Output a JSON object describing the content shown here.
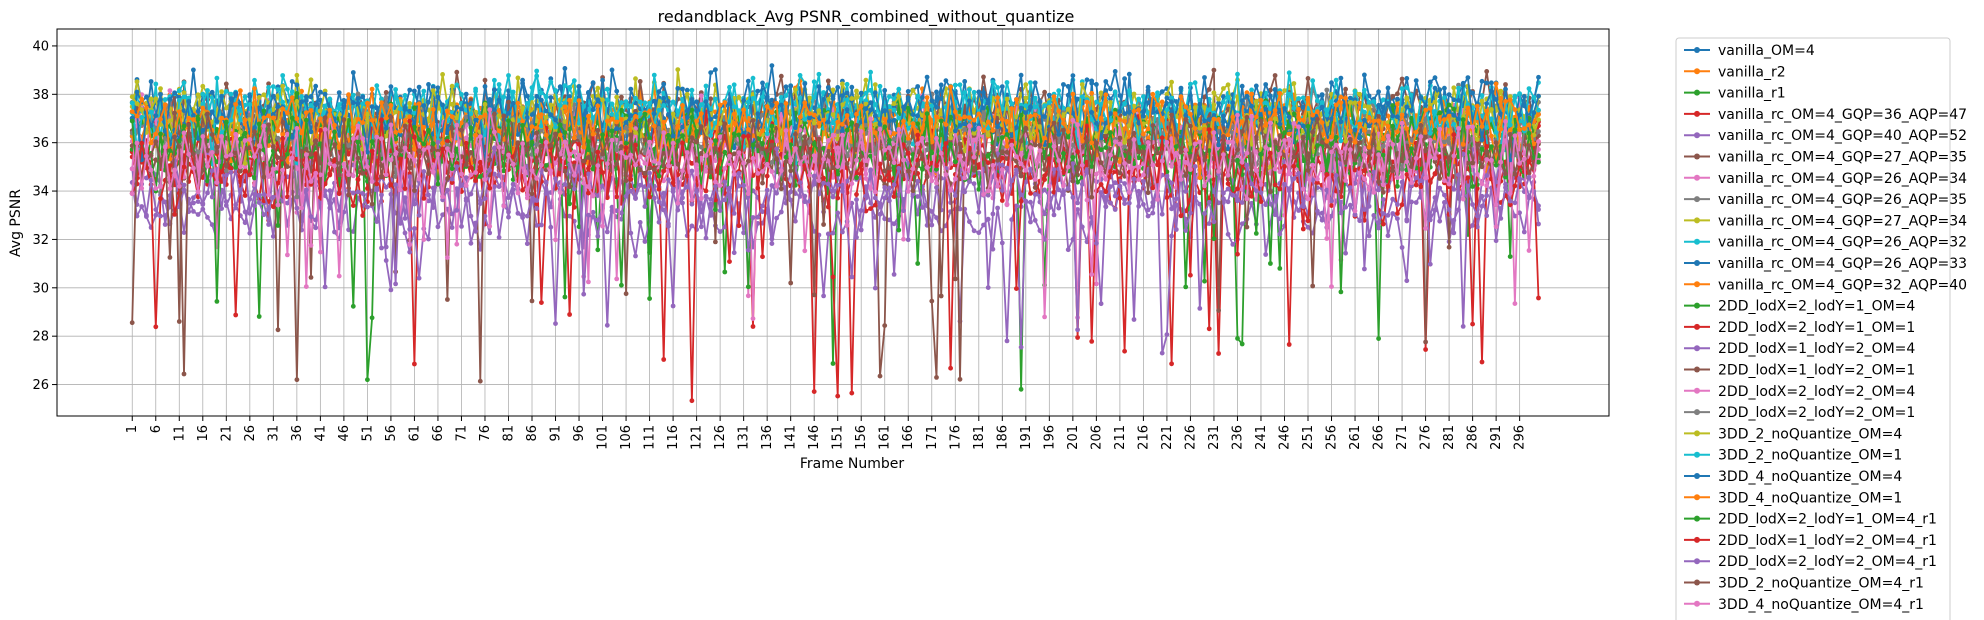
{
  "chart_data": {
    "type": "line",
    "title": "redandblack_Avg PSNR_combined_without_quantize",
    "xlabel": "Frame Number",
    "ylabel": "Avg PSNR",
    "xlim": [
      -15,
      315
    ],
    "ylim": [
      24.7,
      40.7
    ],
    "x_range": [
      1,
      300
    ],
    "x_ticks": [
      1,
      6,
      11,
      16,
      21,
      26,
      31,
      36,
      41,
      46,
      51,
      56,
      61,
      66,
      71,
      76,
      81,
      86,
      91,
      96,
      101,
      106,
      111,
      116,
      121,
      126,
      131,
      136,
      141,
      146,
      151,
      156,
      161,
      166,
      171,
      176,
      181,
      186,
      191,
      196,
      201,
      206,
      211,
      216,
      221,
      226,
      231,
      236,
      241,
      246,
      251,
      256,
      261,
      266,
      271,
      276,
      281,
      286,
      291,
      296
    ],
    "y_ticks": [
      26,
      28,
      30,
      32,
      34,
      36,
      38,
      40
    ],
    "grid": true,
    "legend_position": "outside right",
    "marker": "circle",
    "series": [
      {
        "name": "vanilla_OM=4",
        "color": "#1f77b4",
        "mean": 37.4,
        "spread": 1.1,
        "min": 35.5,
        "max": 40.0
      },
      {
        "name": "vanilla_r2",
        "color": "#ff7f0e",
        "mean": 37.0,
        "spread": 1.0,
        "min": 35.0,
        "max": 39.0
      },
      {
        "name": "vanilla_r1",
        "color": "#2ca02c",
        "mean": 35.9,
        "spread": 1.2,
        "min": 25.7,
        "max": 38.5
      },
      {
        "name": "vanilla_rc_OM=4_GQP=36_AQP=47",
        "color": "#d62728",
        "mean": 35.0,
        "spread": 1.5,
        "min": 24.9,
        "max": 38.0
      },
      {
        "name": "vanilla_rc_OM=4_GQP=40_AQP=52",
        "color": "#9467bd",
        "mean": 33.0,
        "spread": 1.3,
        "min": 27.3,
        "max": 36.0
      },
      {
        "name": "vanilla_rc_OM=4_GQP=27_AQP=35",
        "color": "#8c564b",
        "mean": 37.2,
        "spread": 1.2,
        "min": 26.1,
        "max": 39.0
      },
      {
        "name": "vanilla_rc_OM=4_GQP=26_AQP=34",
        "color": "#e377c2",
        "mean": 36.0,
        "spread": 1.4,
        "min": 28.0,
        "max": 38.5
      },
      {
        "name": "vanilla_rc_OM=4_GQP=26_AQP=35",
        "color": "#7f7f7f",
        "mean": 37.0,
        "spread": 1.0,
        "min": 35.0,
        "max": 38.8
      },
      {
        "name": "vanilla_rc_OM=4_GQP=27_AQP=34",
        "color": "#bcbd22",
        "mean": 37.3,
        "spread": 1.1,
        "min": 35.0,
        "max": 39.3
      },
      {
        "name": "vanilla_rc_OM=4_GQP=26_AQP=32",
        "color": "#17becf",
        "mean": 37.6,
        "spread": 1.1,
        "min": 35.5,
        "max": 39.8
      },
      {
        "name": "vanilla_rc_OM=4_GQP=26_AQP=33",
        "color": "#1f77b4",
        "mean": 37.5,
        "spread": 1.1,
        "min": 35.5,
        "max": 39.8
      },
      {
        "name": "vanilla_rc_OM=4_GQP=32_AQP=40",
        "color": "#ff7f0e",
        "mean": 36.5,
        "spread": 1.1,
        "min": 34.0,
        "max": 38.5
      },
      {
        "name": "2DD_lodX=2_lodY=1_OM=4",
        "color": "#2ca02c",
        "mean": 36.5,
        "spread": 1.1,
        "min": 29.0,
        "max": 38.5
      },
      {
        "name": "2DD_lodX=2_lodY=1_OM=1",
        "color": "#d62728",
        "mean": 35.5,
        "spread": 1.2,
        "min": 28.0,
        "max": 38.0
      },
      {
        "name": "2DD_lodX=1_lodY=2_OM=4",
        "color": "#9467bd",
        "mean": 34.2,
        "spread": 1.3,
        "min": 28.0,
        "max": 37.0
      },
      {
        "name": "2DD_lodX=1_lodY=2_OM=1",
        "color": "#8c564b",
        "mean": 35.8,
        "spread": 1.3,
        "min": 29.5,
        "max": 38.5
      },
      {
        "name": "2DD_lodX=2_lodY=2_OM=4",
        "color": "#e377c2",
        "mean": 35.5,
        "spread": 1.3,
        "min": 29.0,
        "max": 38.0
      },
      {
        "name": "2DD_lodX=2_lodY=2_OM=1",
        "color": "#7f7f7f",
        "mean": 36.2,
        "spread": 1.1,
        "min": 33.5,
        "max": 38.5
      },
      {
        "name": "3DD_2_noQuantize_OM=4",
        "color": "#bcbd22",
        "mean": 37.0,
        "spread": 1.1,
        "min": 34.5,
        "max": 39.3
      },
      {
        "name": "3DD_2_noQuantize_OM=1",
        "color": "#17becf",
        "mean": 37.3,
        "spread": 1.1,
        "min": 35.0,
        "max": 39.5
      },
      {
        "name": "3DD_4_noQuantize_OM=4",
        "color": "#1f77b4",
        "mean": 37.2,
        "spread": 1.1,
        "min": 35.0,
        "max": 39.8
      },
      {
        "name": "3DD_4_noQuantize_OM=1",
        "color": "#ff7f0e",
        "mean": 36.8,
        "spread": 1.1,
        "min": 34.5,
        "max": 39.0
      },
      {
        "name": "2DD_lodX=2_lodY=1_OM=4_r1",
        "color": "#2ca02c",
        "mean": 35.5,
        "spread": 1.3,
        "min": 29.0,
        "max": 38.0
      },
      {
        "name": "2DD_lodX=1_lodY=2_OM=4_r1",
        "color": "#d62728",
        "mean": 34.7,
        "spread": 1.4,
        "min": 25.3,
        "max": 37.5
      },
      {
        "name": "2DD_lodX=2_lodY=2_OM=4_r1",
        "color": "#9467bd",
        "mean": 33.8,
        "spread": 1.4,
        "min": 28.0,
        "max": 37.0
      },
      {
        "name": "3DD_2_noQuantize_OM=4_r1",
        "color": "#8c564b",
        "mean": 35.5,
        "spread": 1.4,
        "min": 26.2,
        "max": 38.5
      },
      {
        "name": "3DD_4_noQuantize_OM=4_r1",
        "color": "#e377c2",
        "mean": 35.2,
        "spread": 1.4,
        "min": 28.5,
        "max": 38.0
      }
    ]
  }
}
